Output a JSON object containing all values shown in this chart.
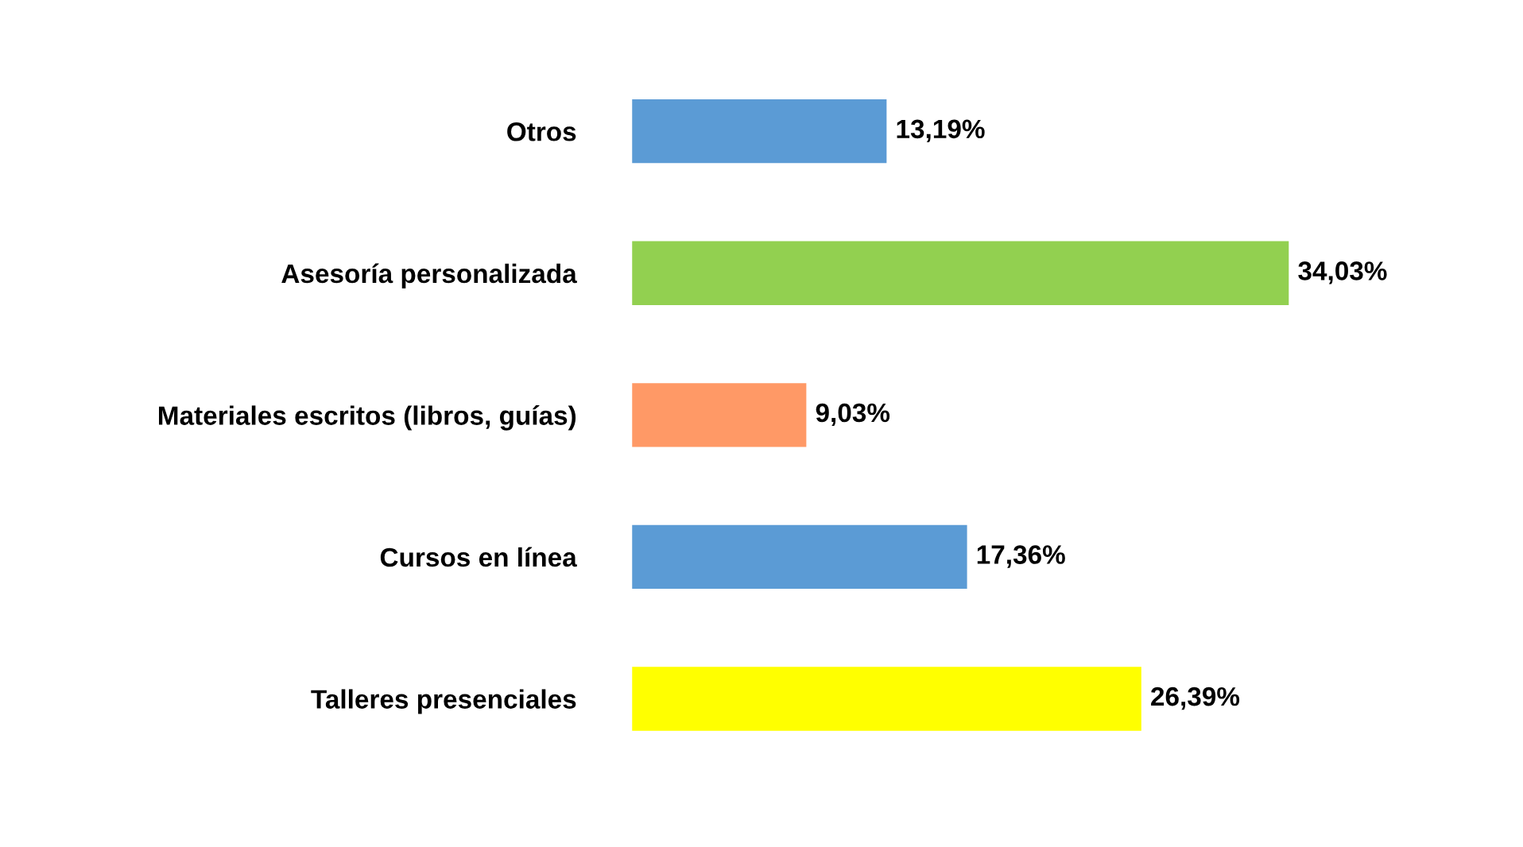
{
  "chart_data": {
    "type": "bar",
    "orientation": "horizontal",
    "categories": [
      "Otros",
      "Asesoría personalizada",
      "Materiales escritos (libros, guías)",
      "Cursos en línea",
      "Talleres presenciales"
    ],
    "values": [
      13.19,
      34.03,
      9.03,
      17.36,
      26.39
    ],
    "colors": [
      "#5b9bd5",
      "#92d050",
      "#ff9966",
      "#5b9bd5",
      "#ffff00"
    ],
    "value_labels": [
      "13,19%",
      "34,03%",
      "9,03%",
      "17,36%",
      "26,39%"
    ],
    "grid": false,
    "legend": false
  }
}
